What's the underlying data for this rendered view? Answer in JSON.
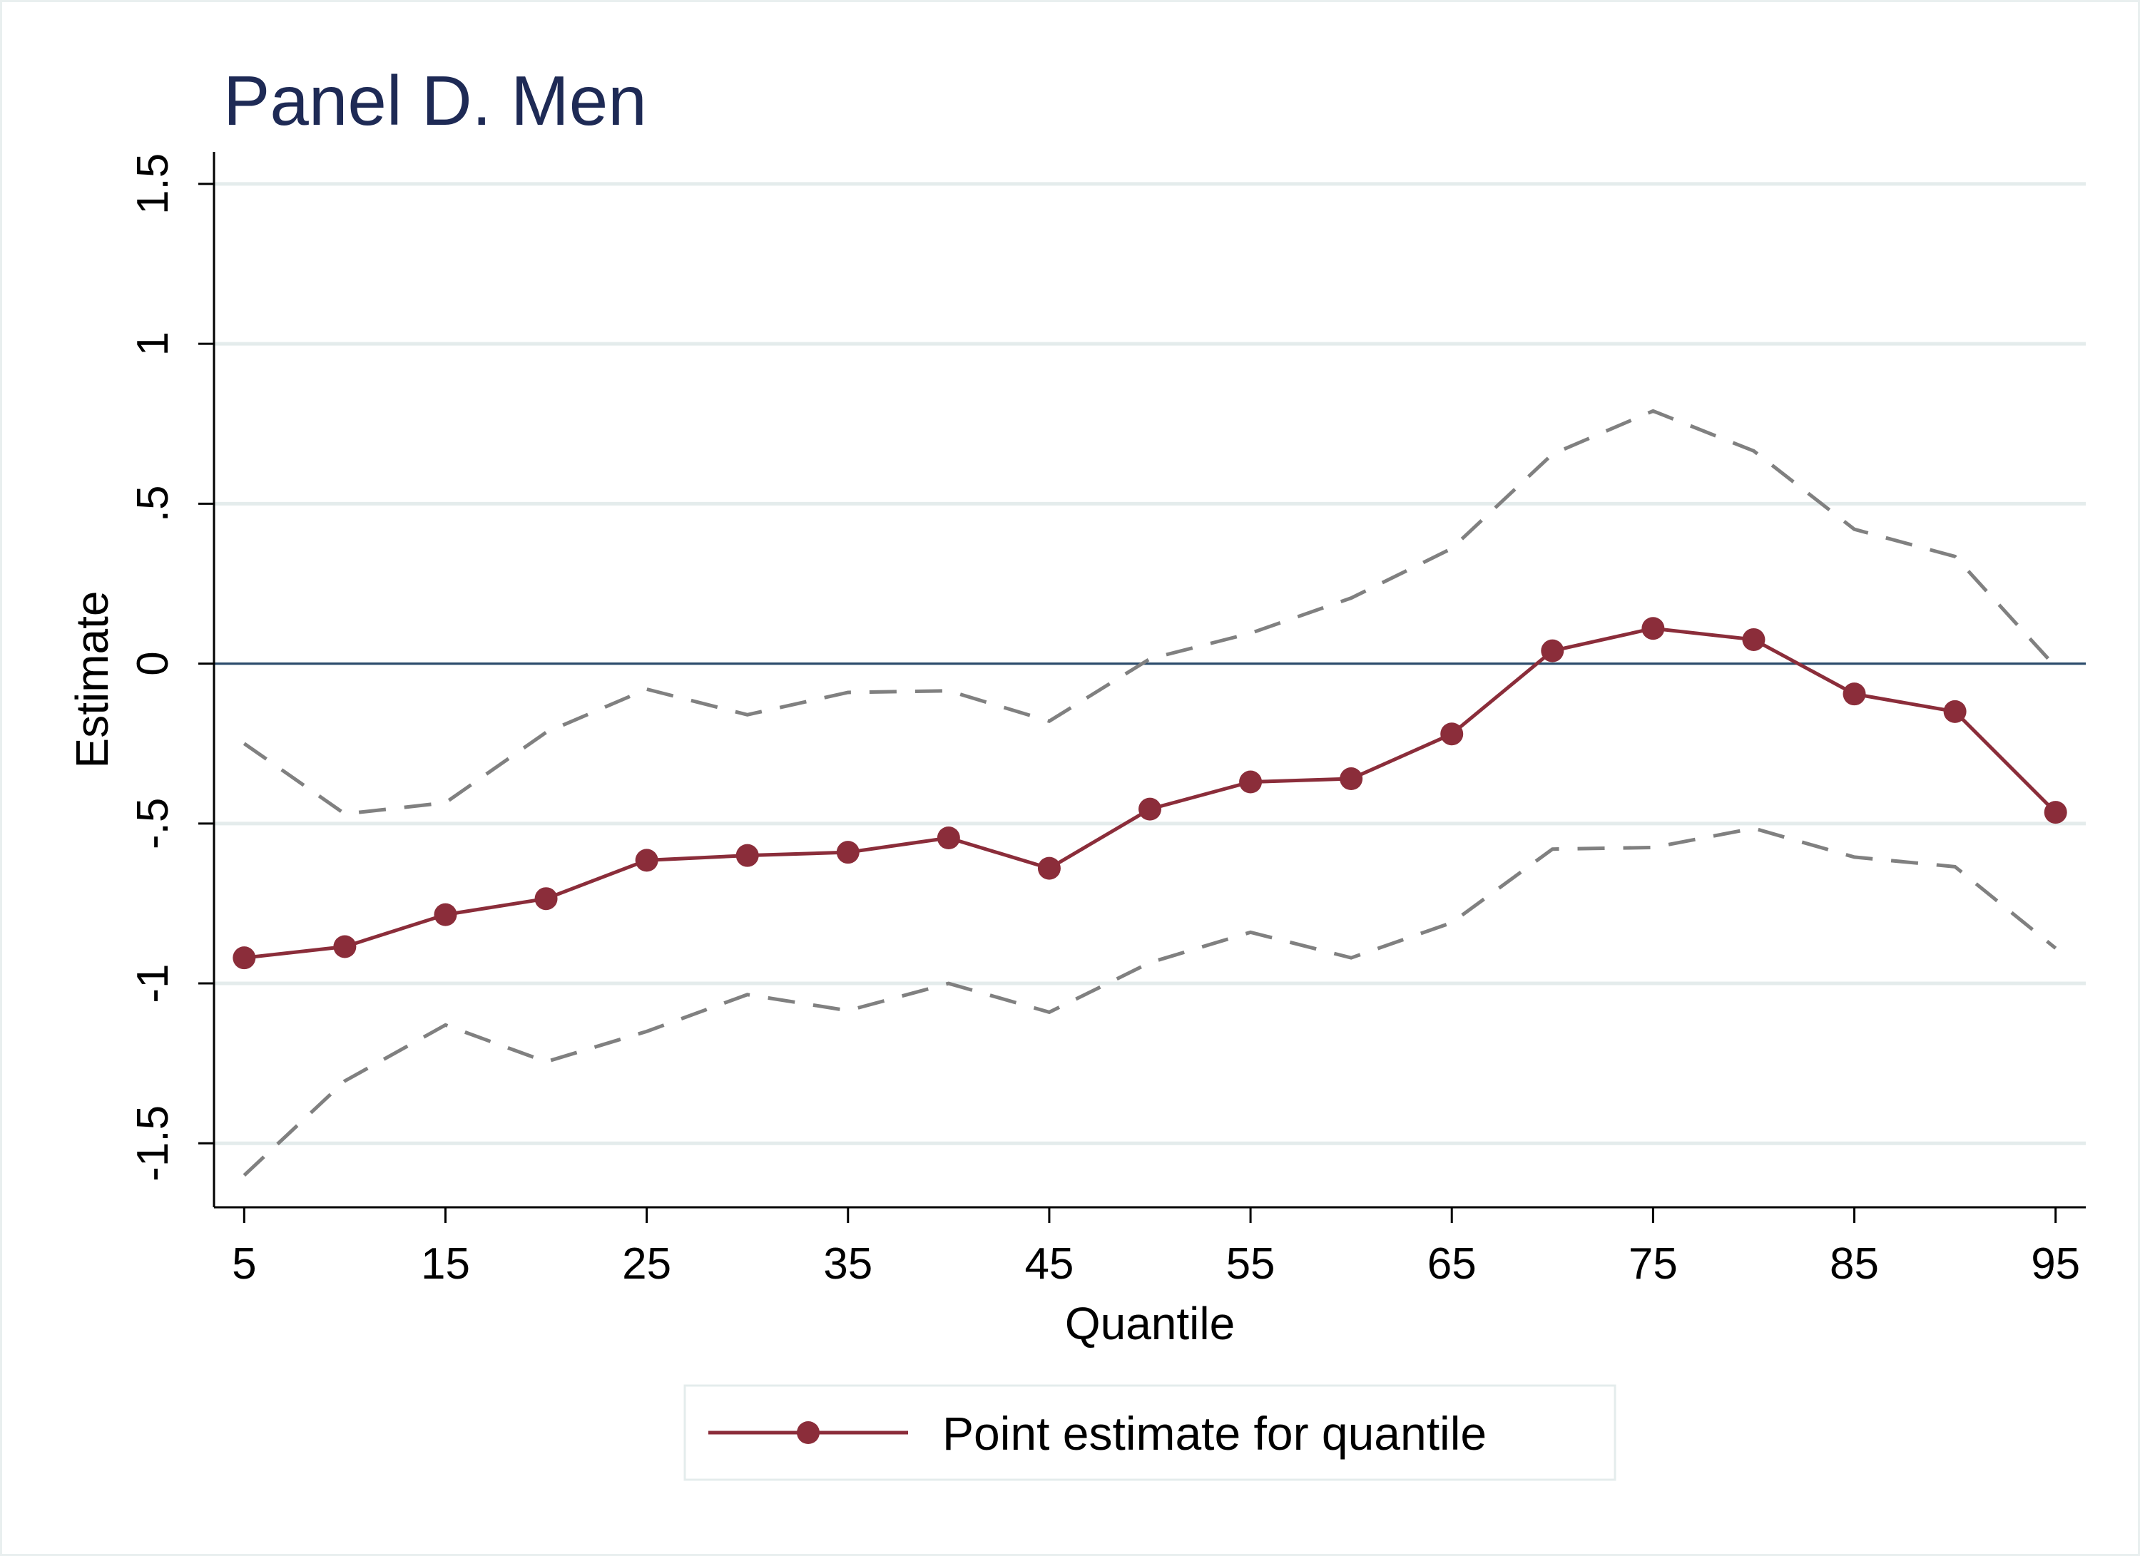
{
  "chart_data": {
    "type": "line",
    "title": "Panel D. Men",
    "xlabel": "Quantile",
    "ylabel": "Estimate",
    "xlim": [
      3.5,
      96.5
    ],
    "ylim": [
      -1.7,
      1.6
    ],
    "x_ticks": [
      5,
      15,
      25,
      35,
      45,
      55,
      65,
      75,
      85,
      95
    ],
    "x_tick_labels": [
      "5",
      "15",
      "25",
      "35",
      "45",
      "55",
      "65",
      "75",
      "85",
      "95"
    ],
    "y_ticks": [
      -1.5,
      -1,
      -0.5,
      0,
      0.5,
      1,
      1.5
    ],
    "y_tick_labels": [
      "-1.5",
      "-1",
      "-.5",
      "0",
      ".5",
      "1",
      "1.5"
    ],
    "grid": true,
    "reference_line_y": 0,
    "legend_position": "bottom",
    "x": [
      5,
      10,
      15,
      20,
      25,
      30,
      35,
      40,
      45,
      50,
      55,
      60,
      65,
      70,
      75,
      80,
      85,
      90,
      95
    ],
    "series": [
      {
        "name": "Point estimate for quantile",
        "role": "point-estimate",
        "style": "solid-with-markers",
        "color": "#8b2d3a",
        "values": [
          -0.92,
          -0.885,
          -0.785,
          -0.735,
          -0.615,
          -0.6,
          -0.59,
          -0.545,
          -0.64,
          -0.455,
          -0.37,
          -0.36,
          -0.22,
          0.04,
          0.11,
          0.075,
          -0.095,
          -0.15,
          -0.465
        ]
      },
      {
        "role": "upper-bound",
        "style": "dashed",
        "color": "#808080",
        "values": [
          -0.25,
          -0.47,
          -0.435,
          -0.215,
          -0.08,
          -0.16,
          -0.09,
          -0.085,
          -0.18,
          0.015,
          0.095,
          0.205,
          0.36,
          0.655,
          0.79,
          0.665,
          0.42,
          0.335,
          -0.01
        ]
      },
      {
        "role": "lower-bound",
        "style": "dashed",
        "color": "#808080",
        "values": [
          -1.6,
          -1.305,
          -1.13,
          -1.245,
          -1.15,
          -1.035,
          -1.085,
          -1.0,
          -1.09,
          -0.935,
          -0.84,
          -0.92,
          -0.81,
          -0.58,
          -0.575,
          -0.515,
          -0.605,
          -0.635,
          -0.89
        ]
      }
    ],
    "colors": {
      "title": "#1e2a55",
      "grid": "#e4ecec",
      "zero_line": "#2a4a6b",
      "point_estimate": "#8b2d3a",
      "ci": "#808080",
      "frame": "#e9efef"
    }
  }
}
